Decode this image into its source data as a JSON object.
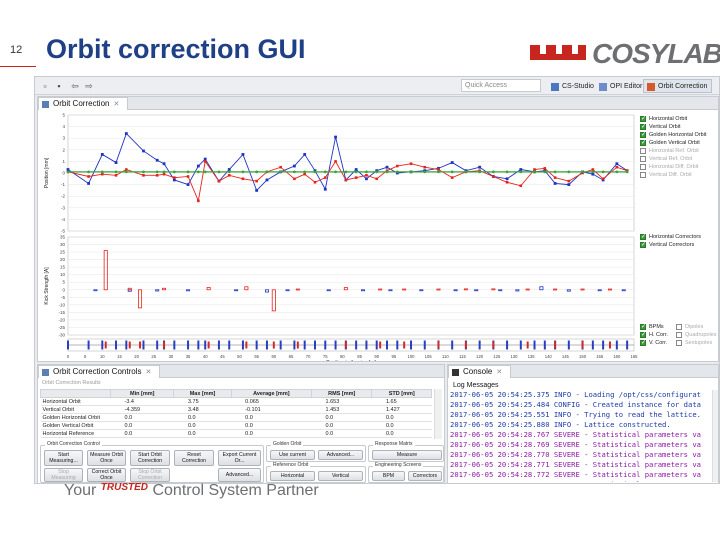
{
  "slide": {
    "number": "12",
    "title": "Orbit correction GUI",
    "logo_text": "COSYLAB",
    "tagline_prefix": "Your ",
    "tagline_trusted": "TRUSTED",
    "tagline_suffix": " Control System Partner"
  },
  "toolbar": {
    "quick_access_placeholder": "Quick Access",
    "perspectives": [
      {
        "label": "CS-Studio",
        "active": false
      },
      {
        "label": "OPI Editor",
        "active": false
      },
      {
        "label": "Orbit Correction",
        "active": true
      }
    ]
  },
  "orbit_view": {
    "tab_label": "Orbit Correction",
    "close_glyph": "✕",
    "legend_orbit": [
      {
        "label": "Horizontal Orbit",
        "checked": true
      },
      {
        "label": "Vertical Orbit",
        "checked": true
      },
      {
        "label": "Golden Horizontal Orbit",
        "checked": true
      },
      {
        "label": "Golden Vertical Orbit",
        "checked": true
      },
      {
        "label": "Horizontal Ref. Orbit",
        "checked": false
      },
      {
        "label": "Vertical Ref. Orbit",
        "checked": false
      },
      {
        "label": "Horizontal Diff. Orbit",
        "checked": false
      },
      {
        "label": "Vertical Diff. Orbit",
        "checked": false
      }
    ],
    "legend_correctors": [
      {
        "label": "Horizontal Correctors",
        "checked": true
      },
      {
        "label": "Vertical Correctors",
        "checked": true
      }
    ],
    "legend_lattice": [
      {
        "label": "BPMs",
        "checked": true
      },
      {
        "label": "Dipoles",
        "checked": false
      },
      {
        "label": "H. Corr.",
        "checked": true
      },
      {
        "label": "Quadrupoles",
        "checked": false
      },
      {
        "label": "V. Corr.",
        "checked": true
      },
      {
        "label": "Sextupoles",
        "checked": false
      }
    ]
  },
  "chart_data": [
    {
      "type": "line",
      "ylabel": "Position [mm]",
      "ylim": [
        -5,
        5
      ],
      "y_ticks": [
        "5",
        "4",
        "3",
        "2",
        "1",
        "0",
        "-1",
        "-2",
        "-3",
        "-4",
        "-5"
      ],
      "x": [
        0,
        6,
        10,
        14,
        17,
        22,
        26,
        28,
        31,
        35,
        38,
        40,
        44,
        47,
        51,
        55,
        58,
        62,
        66,
        69,
        72,
        75,
        78,
        81,
        84,
        87,
        90,
        93,
        96,
        100,
        104,
        108,
        112,
        116,
        120,
        124,
        128,
        132,
        136,
        139,
        142,
        146,
        150,
        153,
        156,
        160,
        163
      ],
      "series": [
        {
          "name": "Horizontal Orbit",
          "color": "#1f33c4",
          "values": [
            0.3,
            -0.9,
            1.6,
            0.9,
            3.4,
            1.9,
            1.1,
            0.8,
            -0.6,
            -1.0,
            0.6,
            1.2,
            -0.7,
            0.3,
            1.6,
            -1.5,
            -0.6,
            0.1,
            0.6,
            1.6,
            0.2,
            -1.4,
            3.1,
            -0.6,
            0.3,
            -0.5,
            0.2,
            0.5,
            0.0,
            0.1,
            0.2,
            0.4,
            0.9,
            0.2,
            0.5,
            -0.3,
            -0.5,
            0.3,
            0.1,
            0.2,
            -0.9,
            -1.0,
            0.1,
            -0.1,
            -0.6,
            0.8,
            0.2
          ]
        },
        {
          "name": "Vertical Orbit",
          "color": "#e8231c",
          "values": [
            0.1,
            -0.3,
            -0.1,
            -0.2,
            0.3,
            -0.2,
            -0.2,
            -0.1,
            -0.4,
            -0.3,
            -2.4,
            1.0,
            -0.7,
            -0.2,
            -0.5,
            -0.7,
            0.1,
            0.5,
            -0.5,
            -0.1,
            -0.8,
            -0.4,
            1.0,
            -0.6,
            -0.4,
            -0.2,
            -0.5,
            0.2,
            0.6,
            0.8,
            0.5,
            0.3,
            -0.4,
            0.1,
            0.2,
            -0.3,
            -0.8,
            -1.1,
            0.3,
            0.4,
            -0.4,
            -0.7,
            0.0,
            0.3,
            -0.5,
            0.5,
            0.2
          ]
        },
        {
          "name": "Golden Horizontal Orbit",
          "color": "#3aa33a",
          "values": [
            0.1,
            0.1,
            0.1,
            0.1,
            0.1,
            0.1,
            0.1,
            0.1,
            0.1,
            0.1,
            0.1,
            0.1,
            0.1,
            0.1,
            0.1,
            0.1,
            0.1,
            0.1,
            0.1,
            0.1,
            0.1,
            0.1,
            0.1,
            0.1,
            0.1,
            0.1,
            0.1,
            0.1,
            0.1,
            0.1,
            0.1,
            0.1,
            0.1,
            0.1,
            0.1,
            0.1,
            0.1,
            0.1,
            0.1,
            0.1,
            0.1,
            0.1,
            0.1,
            0.1,
            0.1,
            0.1,
            0.1
          ]
        }
      ]
    },
    {
      "type": "bar",
      "ylabel": "Kick Strength [A]",
      "ylim": [
        -30,
        35
      ],
      "y_ticks": [
        "35",
        "30",
        "25",
        "20",
        "15",
        "10",
        "5",
        "0",
        "-5",
        "-10",
        "-15",
        "-20",
        "-25",
        "-30"
      ],
      "series": [
        {
          "name": "Horizontal Correctors",
          "color": "#1f33c4",
          "x": [
            8,
            18,
            26,
            35,
            49,
            58,
            64,
            76,
            86,
            94,
            103,
            113,
            119,
            126,
            131,
            138,
            146,
            155,
            162
          ],
          "values": [
            -0.5,
            -1.0,
            -0.8,
            -0.7,
            -0.6,
            -1.5,
            -0.6,
            -0.5,
            -0.6,
            -0.6,
            -0.6,
            -0.6,
            -0.6,
            -0.6,
            -0.8,
            2.0,
            -0.9,
            -0.6,
            -0.6
          ]
        },
        {
          "name": "Vertical Correctors",
          "color": "#e8231c",
          "x": [
            11,
            18,
            21,
            28,
            41,
            52,
            60,
            67,
            81,
            91,
            98,
            108,
            116,
            124,
            134,
            142,
            150,
            158
          ],
          "values": [
            26,
            1.0,
            -12,
            1.0,
            1.5,
            2.0,
            -14,
            0.5,
            1.5,
            0.5,
            0.5,
            0.5,
            0.6,
            0.6,
            0.5,
            0.5,
            0.5,
            0.5
          ]
        }
      ]
    },
    {
      "type": "scatter",
      "xlabel": "Position in the ring [m]",
      "xlim": [
        0,
        165
      ],
      "x_ticks": [
        "0",
        "5",
        "10",
        "15",
        "20",
        "25",
        "30",
        "35",
        "40",
        "45",
        "50",
        "55",
        "60",
        "65",
        "70",
        "75",
        "80",
        "85",
        "90",
        "95",
        "100",
        "105",
        "110",
        "115",
        "120",
        "125",
        "130",
        "135",
        "140",
        "145",
        "150",
        "155",
        "160",
        "165"
      ]
    }
  ],
  "controls_view": {
    "tab_label": "Orbit Correction Controls",
    "caption": "Orbit Correction Results",
    "columns": [
      "",
      "Min [mm]",
      "Max [mm]",
      "Average [mm]",
      "RMS [mm]",
      "STD [mm]"
    ],
    "rows": [
      [
        "Horizontal Orbit",
        "-3.4",
        "3.75",
        "0.065",
        "1.653",
        "1.65"
      ],
      [
        "Vertical Orbit",
        "-4.359",
        "3.48",
        "-0.101",
        "1.453",
        "1.427"
      ],
      [
        "Golden Horizontal Orbit",
        "0.0",
        "0.0",
        "0.0",
        "0.0",
        "0.0"
      ],
      [
        "Golden Vertical Orbit",
        "0.0",
        "0.0",
        "0.0",
        "0.0",
        "0.0"
      ],
      [
        "Horizontal Reference",
        "0.0",
        "0.0",
        "0.0",
        "0.0",
        "0.0"
      ]
    ],
    "group_control": "Orbit Correction Control",
    "group_golden": "Golden Orbit",
    "group_reference": "Reference Orbit",
    "group_response": "Response Matrix",
    "group_engineering": "Engineering Screens",
    "buttons": {
      "start_measuring": "Start Measuring...",
      "measure_orbit_once": "Measure Orbit Once",
      "start_orbit_correction": "Start Orbit Correction",
      "reset_correction": "Reset Correction",
      "export_current_or": "Export Current Or...",
      "stop_measuring": "Stop Measuring",
      "correct_orbit_once": "Correct Orbit Once",
      "stop_orbit_correction": "Stop Orbit Correction",
      "advanced_1": "Advanced...",
      "use_current": "Use current",
      "advanced_2": "Advanced...",
      "horizontal": "Horizontal",
      "vertical": "Vertical",
      "measure": "Measure",
      "bpm": "BPM",
      "correctors": "Correctors"
    }
  },
  "console_view": {
    "tab_label": "Console",
    "log_label": "Log Messages",
    "lines": [
      {
        "level": "info",
        "text": "2017-06-05 20:54:25.375 INFO - Loading /opt/css/configurat"
      },
      {
        "level": "info",
        "text": "2017-06-05 20:54:25.484 CONFIG - Created instance for data"
      },
      {
        "level": "info",
        "text": "2017-06-05 20:54:25.551 INFO - Trying to read the lattice."
      },
      {
        "level": "info",
        "text": "2017-06-05 20:54:25.880 INFO - Lattice constructed."
      },
      {
        "level": "warn",
        "text": "2017-06-05 20:54:28.767 SEVERE - Statistical parameters va"
      },
      {
        "level": "warn",
        "text": "2017-06-05 20:54:28.769 SEVERE - Statistical parameters va"
      },
      {
        "level": "warn",
        "text": "2017-06-05 20:54:28.770 SEVERE - Statistical parameters va"
      },
      {
        "level": "warn",
        "text": "2017-06-05 20:54:28.771 SEVERE - Statistical parameters va"
      },
      {
        "level": "warn",
        "text": "2017-06-05 20:54:28.772 SEVERE - Statistical parameters va"
      },
      {
        "level": "warn",
        "text": "2017-06-05 20:54:28.773 SEVERE - Statistical parameters va"
      },
      {
        "level": "info",
        "text": "2017-06-05 20:54:44.059 INFO - Reset orbit correction setp"
      }
    ]
  },
  "colors": {
    "title": "#1f3f86",
    "brand_red": "#c6261e",
    "horizontal": "#1f33c4",
    "vertical": "#e8231c",
    "golden": "#3aa33a"
  }
}
